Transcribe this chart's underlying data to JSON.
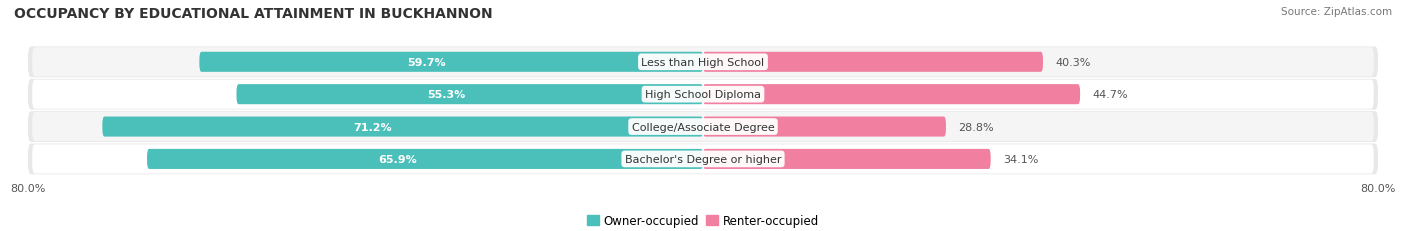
{
  "title": "OCCUPANCY BY EDUCATIONAL ATTAINMENT IN BUCKHANNON",
  "source": "Source: ZipAtlas.com",
  "categories": [
    "Less than High School",
    "High School Diploma",
    "College/Associate Degree",
    "Bachelor's Degree or higher"
  ],
  "owner_pct": [
    59.7,
    55.3,
    71.2,
    65.9
  ],
  "renter_pct": [
    40.3,
    44.7,
    28.8,
    34.1
  ],
  "owner_color": "#4bbfba",
  "renter_color": "#f07fa0",
  "row_bg_color": "#e8e8e8",
  "row_inner_color_odd": "#f5f5f5",
  "row_inner_color_even": "#ffffff",
  "axis_min": -80.0,
  "axis_max": 80.0,
  "title_fontsize": 10,
  "label_fontsize": 8,
  "pct_fontsize": 8,
  "tick_fontsize": 8,
  "legend_fontsize": 8.5
}
